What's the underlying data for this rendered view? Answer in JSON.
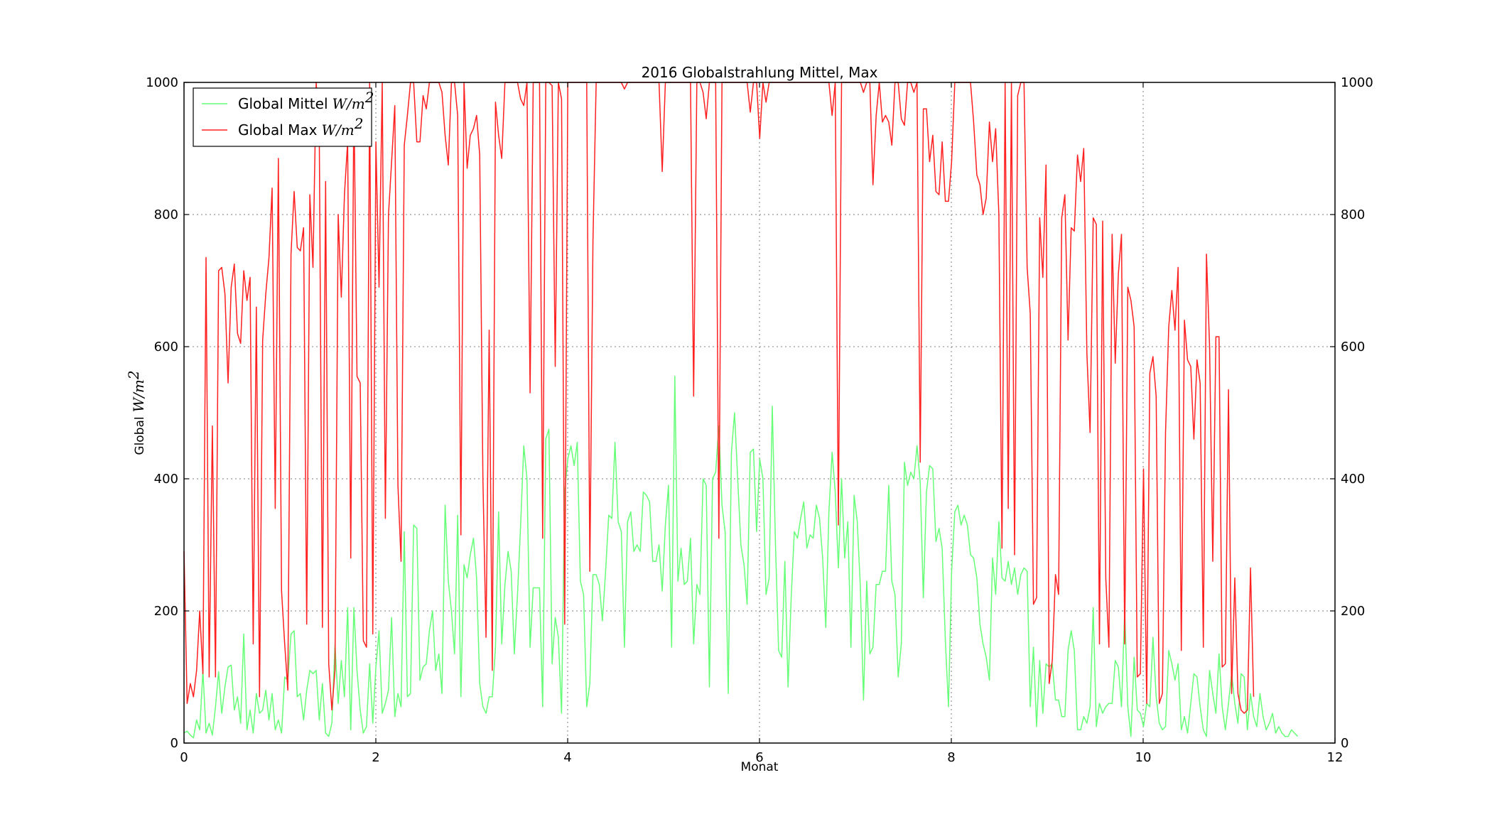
{
  "chart_data": {
    "type": "line",
    "title": "2016 Globalstrahlung Mittel, Max",
    "xlabel": "Monat",
    "ylabel": "Global",
    "ylabel_unit": "W/m",
    "ylabel_unit_exp": "2",
    "xlim": [
      0,
      12
    ],
    "ylim": [
      0,
      1000
    ],
    "xticks": [
      0,
      2,
      4,
      6,
      8,
      10,
      12
    ],
    "yticks": [
      0,
      200,
      400,
      600,
      800,
      1000
    ],
    "xtick_labels": [
      "0",
      "2",
      "4",
      "6",
      "8",
      "10",
      "12"
    ],
    "ytick_labels": [
      "0",
      "200",
      "400",
      "600",
      "800",
      "1000"
    ],
    "ytick_labels_right": [
      "0",
      "200",
      "400",
      "600",
      "800",
      "1000"
    ],
    "grid": true,
    "legend_position": "top-left",
    "series": [
      {
        "name": "Global Mittel",
        "unit": "W/m",
        "unit_exp": "2",
        "color": "#66ff77",
        "x_start": 0,
        "x_step": 0.0328,
        "values": [
          15,
          18,
          12,
          8,
          35,
          20,
          110,
          15,
          30,
          12,
          55,
          108,
          45,
          85,
          115,
          118,
          50,
          70,
          30,
          165,
          20,
          50,
          15,
          75,
          45,
          50,
          80,
          35,
          75,
          20,
          35,
          15,
          100,
          95,
          165,
          170,
          70,
          75,
          35,
          80,
          110,
          105,
          110,
          35,
          90,
          15,
          10,
          30,
          150,
          60,
          125,
          70,
          205,
          20,
          205,
          110,
          50,
          15,
          25,
          120,
          30,
          115,
          170,
          45,
          60,
          80,
          190,
          40,
          75,
          55,
          320,
          70,
          75,
          330,
          325,
          95,
          115,
          120,
          170,
          200,
          110,
          135,
          75,
          360,
          245,
          200,
          135,
          345,
          70,
          270,
          250,
          285,
          310,
          250,
          90,
          55,
          45,
          70,
          70,
          145,
          350,
          150,
          240,
          290,
          260,
          135,
          225,
          330,
          450,
          400,
          145,
          235,
          235,
          235,
          55,
          460,
          475,
          120,
          190,
          160,
          45,
          380,
          430,
          450,
          420,
          455,
          245,
          225,
          55,
          90,
          255,
          255,
          240,
          185,
          260,
          345,
          340,
          455,
          335,
          320,
          145,
          335,
          350,
          290,
          300,
          290,
          380,
          375,
          365,
          275,
          275,
          300,
          230,
          330,
          390,
          145,
          555,
          245,
          295,
          240,
          245,
          310,
          150,
          240,
          225,
          400,
          390,
          85,
          400,
          410,
          480,
          360,
          320,
          75,
          440,
          500,
          400,
          300,
          270,
          210,
          440,
          445,
          320,
          430,
          400,
          225,
          250,
          510,
          300,
          140,
          130,
          275,
          85,
          220,
          320,
          310,
          340,
          365,
          295,
          315,
          310,
          360,
          340,
          280,
          175,
          350,
          440,
          380,
          265,
          400,
          280,
          335,
          145,
          375,
          335,
          235,
          65,
          245,
          135,
          145,
          240,
          240,
          260,
          260,
          390,
          245,
          225,
          100,
          150,
          425,
          390,
          410,
          400,
          450,
          395,
          220,
          380,
          420,
          415,
          305,
          325,
          295,
          155,
          55,
          260,
          350,
          360,
          330,
          345,
          330,
          285,
          280,
          250,
          180,
          150,
          130,
          95,
          280,
          225,
          335,
          250,
          245,
          275,
          240,
          265,
          225,
          255,
          265,
          260,
          55,
          145,
          25,
          125,
          45,
          120,
          115,
          120,
          65,
          65,
          40,
          40,
          140,
          170,
          140,
          20,
          20,
          40,
          30,
          55,
          205,
          25,
          60,
          45,
          55,
          60,
          60,
          125,
          115,
          55,
          200,
          55,
          10,
          130,
          50,
          45,
          25,
          60,
          55,
          160,
          70,
          30,
          20,
          25,
          140,
          120,
          95,
          120,
          20,
          40,
          15,
          60,
          105,
          100,
          55,
          20,
          10,
          110,
          75,
          45,
          135,
          55,
          20,
          60,
          105,
          60,
          30,
          105,
          100,
          20,
          75,
          40,
          25,
          75,
          40,
          20,
          30,
          45,
          15,
          25,
          15,
          10,
          10,
          20,
          15,
          10
        ]
      },
      {
        "name": "Global Max",
        "unit": "W/m",
        "unit_exp": "2",
        "color": "#ff2020",
        "x_start": 0,
        "x_step": 0.0328,
        "values": [
          290,
          60,
          90,
          70,
          110,
          200,
          105,
          735,
          100,
          480,
          100,
          715,
          720,
          680,
          545,
          690,
          725,
          620,
          605,
          715,
          670,
          705,
          150,
          660,
          70,
          610,
          680,
          735,
          840,
          355,
          885,
          230,
          150,
          80,
          740,
          835,
          750,
          745,
          780,
          180,
          830,
          720,
          1000,
          920,
          175,
          850,
          120,
          50,
          110,
          800,
          675,
          830,
          910,
          280,
          980,
          555,
          545,
          155,
          145,
          1000,
          165,
          910,
          690,
          1000,
          340,
          800,
          880,
          965,
          390,
          275,
          905,
          950,
          1000,
          1000,
          910,
          910,
          980,
          960,
          1000,
          1000,
          1000,
          1000,
          985,
          920,
          875,
          1000,
          1000,
          950,
          315,
          1000,
          870,
          920,
          930,
          950,
          890,
          400,
          160,
          625,
          110,
          970,
          920,
          885,
          1000,
          1000,
          1000,
          1000,
          1000,
          975,
          965,
          1000,
          530,
          1000,
          1000,
          1000,
          310,
          1000,
          1000,
          995,
          570,
          1000,
          975,
          180,
          1000,
          1000,
          1000,
          1000,
          1000,
          1000,
          1000,
          260,
          760,
          1000,
          1000,
          1000,
          1000,
          1000,
          1000,
          1000,
          1000,
          1000,
          990,
          1000,
          1000,
          1000,
          1000,
          1000,
          1000,
          1000,
          1000,
          1000,
          1000,
          1000,
          865,
          1000,
          1000,
          1000,
          1000,
          1000,
          1000,
          1000,
          1000,
          1000,
          525,
          1000,
          1000,
          985,
          945,
          1000,
          1000,
          1000,
          310,
          1000,
          1000,
          1000,
          1000,
          1000,
          1000,
          1000,
          1000,
          1000,
          955,
          1000,
          1000,
          915,
          1000,
          970,
          1000,
          1000,
          1000,
          1000,
          1000,
          1000,
          1000,
          1000,
          1000,
          1000,
          1000,
          1000,
          1000,
          1000,
          1000,
          1000,
          1000,
          1000,
          1000,
          1000,
          950,
          1000,
          330,
          1000,
          1000,
          1000,
          1000,
          1000,
          1000,
          1000,
          985,
          1000,
          1000,
          845,
          950,
          1000,
          940,
          950,
          940,
          905,
          1000,
          1000,
          945,
          935,
          1000,
          1000,
          985,
          1000,
          425,
          960,
          960,
          880,
          920,
          835,
          830,
          910,
          820,
          820,
          880,
          1000,
          1000,
          1000,
          1000,
          1000,
          1000,
          940,
          860,
          845,
          800,
          825,
          940,
          880,
          930,
          800,
          295,
          1000,
          355,
          1000,
          285,
          980,
          1000,
          1000,
          720,
          650,
          210,
          220,
          795,
          705,
          875,
          90,
          125,
          255,
          225,
          795,
          830,
          610,
          780,
          775,
          890,
          850,
          900,
          590,
          470,
          795,
          785,
          150,
          790,
          250,
          145,
          770,
          575,
          710,
          770,
          150,
          690,
          670,
          630,
          100,
          105,
          415,
          60,
          560,
          585,
          525,
          60,
          75,
          470,
          630,
          685,
          625,
          720,
          140,
          640,
          580,
          570,
          460,
          580,
          545,
          145,
          740,
          600,
          275,
          615,
          615,
          115,
          120,
          535,
          75,
          250,
          75,
          50,
          45,
          50,
          265,
          70
        ]
      }
    ]
  }
}
